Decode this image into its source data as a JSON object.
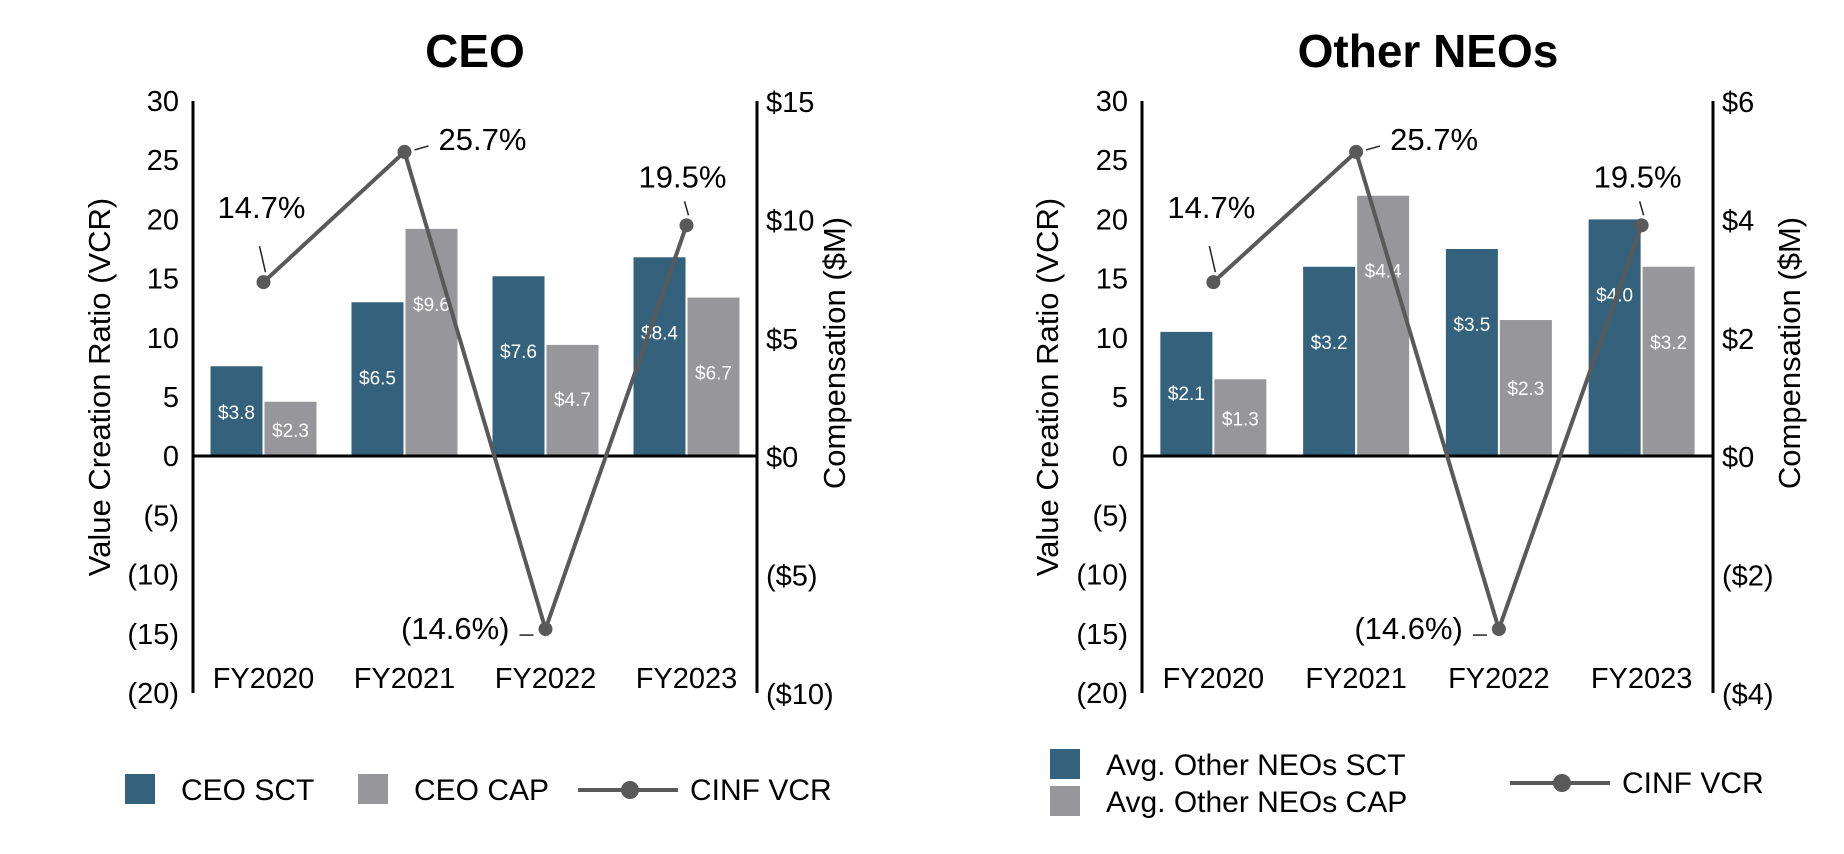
{
  "colors": {
    "sct": "#34627c",
    "cap": "#97979b",
    "vcr": "#595959",
    "axis": "#000000"
  },
  "chart_data": [
    {
      "type": "bar",
      "title": "CEO",
      "categories": [
        "FY2020",
        "FY2021",
        "FY2022",
        "FY2023"
      ],
      "ylabel": "Value Creation Ratio (VCR)",
      "y2label": "Compensation ($M)",
      "ylim": [
        -20,
        30
      ],
      "y2lim": [
        -10,
        15
      ],
      "y_ticks": [
        30,
        25,
        20,
        15,
        10,
        5,
        0,
        -5,
        -10,
        -15,
        -20
      ],
      "y_tick_labels": [
        "30",
        "25",
        "20",
        "15",
        "10",
        "5",
        "0",
        "(5)",
        "(10)",
        "(15)",
        "(20)"
      ],
      "y2_ticks": [
        15,
        10,
        5,
        0,
        -5,
        -10
      ],
      "y2_tick_labels": [
        "$15",
        "$10",
        "$5",
        "$0",
        "($5)",
        "($10)"
      ],
      "series": [
        {
          "name": "CEO SCT",
          "axis": "right",
          "values": [
            3.8,
            6.5,
            7.6,
            8.4
          ],
          "labels": [
            "$3.8",
            "$6.5",
            "$7.6",
            "$8.4"
          ]
        },
        {
          "name": "CEO CAP",
          "axis": "right",
          "values": [
            2.3,
            9.6,
            4.7,
            6.7
          ],
          "labels": [
            "$2.3",
            "$9.6",
            "$4.7",
            "$6.7"
          ]
        },
        {
          "name": "CINF VCR",
          "axis": "left",
          "type": "line",
          "values": [
            14.7,
            25.7,
            -14.6,
            19.5
          ],
          "labels": [
            "14.7%",
            "25.7%",
            "(14.6%)",
            "19.5%"
          ]
        }
      ],
      "legend": [
        "CEO SCT",
        "CEO CAP",
        "CINF VCR"
      ]
    },
    {
      "type": "bar",
      "title": "Other NEOs",
      "categories": [
        "FY2020",
        "FY2021",
        "FY2022",
        "FY2023"
      ],
      "ylabel": "Value Creation Ratio (VCR)",
      "y2label": "Compensation ($M)",
      "ylim": [
        -20,
        30
      ],
      "y2lim": [
        -4,
        6
      ],
      "y_ticks": [
        30,
        25,
        20,
        15,
        10,
        5,
        0,
        -5,
        -10,
        -15,
        -20
      ],
      "y_tick_labels": [
        "30",
        "25",
        "20",
        "15",
        "10",
        "5",
        "0",
        "(5)",
        "(10)",
        "(15)",
        "(20)"
      ],
      "y2_ticks": [
        6,
        4,
        2,
        0,
        -2,
        -4
      ],
      "y2_tick_labels": [
        "$6",
        "$4",
        "$2",
        "$0",
        "($2)",
        "($4)"
      ],
      "series": [
        {
          "name": "Avg. Other NEOs SCT",
          "axis": "right",
          "values": [
            2.1,
            3.2,
            3.5,
            4.0
          ],
          "labels": [
            "$2.1",
            "$3.2",
            "$3.5",
            "$4.0"
          ]
        },
        {
          "name": "Avg. Other NEOs CAP",
          "axis": "right",
          "values": [
            1.3,
            4.4,
            2.3,
            3.2
          ],
          "labels": [
            "$1.3",
            "$4.4",
            "$2.3",
            "$3.2"
          ]
        },
        {
          "name": "CINF VCR",
          "axis": "left",
          "type": "line",
          "values": [
            14.7,
            25.7,
            -14.6,
            19.5
          ],
          "labels": [
            "14.7%",
            "25.7%",
            "(14.6%)",
            "19.5%"
          ]
        }
      ],
      "legend": [
        "Avg. Other NEOs SCT",
        "Avg. Other NEOs CAP",
        "CINF VCR"
      ]
    }
  ]
}
